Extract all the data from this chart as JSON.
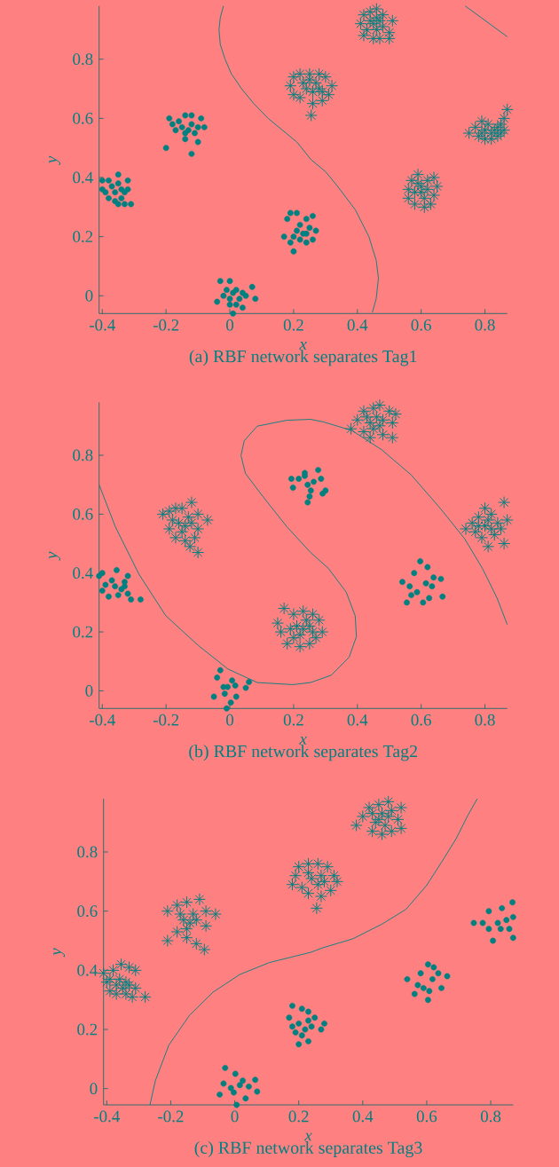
{
  "chart_data": [
    {
      "type": "scatter",
      "title": "(a) RBF network separates Tag1",
      "xlabel": "x",
      "ylabel": "y",
      "xlim": [
        -0.41,
        0.87
      ],
      "ylim": [
        -0.06,
        0.98
      ],
      "xticks": [
        -0.4,
        -0.2,
        0,
        0.2,
        0.4,
        0.6,
        0.8
      ],
      "yticks": [
        0,
        0.2,
        0.4,
        0.6,
        0.8
      ],
      "series": [
        {
          "marker": "circle",
          "color": "#008080",
          "x": [
            -0.4,
            -0.38,
            -0.35,
            -0.32,
            -0.31,
            -0.33,
            -0.35,
            -0.38,
            -0.4,
            -0.36,
            -0.34,
            -0.35,
            -0.33,
            -0.37,
            -0.34,
            -0.36,
            -0.39,
            -0.32,
            -0.2,
            -0.19,
            -0.14,
            -0.12,
            -0.09,
            -0.08,
            -0.12,
            -0.1,
            -0.14,
            -0.17,
            -0.15,
            -0.13,
            -0.11,
            -0.16,
            -0.12,
            -0.14,
            -0.18,
            -0.1,
            0.18,
            0.19,
            0.21,
            0.24,
            0.26,
            0.27,
            0.26,
            0.24,
            0.2,
            0.17,
            0.21,
            0.23,
            0.22,
            0.25,
            0.2,
            0.22,
            0.19,
            0.24,
            -0.03,
            0.0,
            0.07,
            0.08,
            0.04,
            0.01,
            -0.04,
            -0.02,
            0.02,
            0.03,
            0.0,
            0.01,
            0.04,
            -0.01,
            0.02,
            0.05,
            0.0
          ],
          "values": [
            0.39,
            0.39,
            0.41,
            0.39,
            0.31,
            0.31,
            0.31,
            0.33,
            0.36,
            0.35,
            0.36,
            0.38,
            0.35,
            0.37,
            0.33,
            0.32,
            0.35,
            0.36,
            0.5,
            0.6,
            0.61,
            0.61,
            0.6,
            0.57,
            0.48,
            0.52,
            0.53,
            0.56,
            0.57,
            0.56,
            0.55,
            0.59,
            0.58,
            0.55,
            0.58,
            0.57,
            0.26,
            0.28,
            0.28,
            0.26,
            0.27,
            0.22,
            0.19,
            0.18,
            0.15,
            0.2,
            0.22,
            0.21,
            0.19,
            0.23,
            0.2,
            0.24,
            0.18,
            0.21,
            0.05,
            0.05,
            0.03,
            -0.01,
            -0.04,
            -0.06,
            -0.02,
            0.0,
            0.02,
            -0.01,
            -0.01,
            0.01,
            0.01,
            0.02,
            -0.03,
            0.0,
            -0.03
          ]
        },
        {
          "marker": "cross",
          "color": "#008080",
          "x": [
            0.19,
            0.2,
            0.22,
            0.25,
            0.28,
            0.3,
            0.32,
            0.31,
            0.29,
            0.26,
            0.255,
            0.22,
            0.2,
            0.24,
            0.27,
            0.26,
            0.23,
            0.28,
            0.25,
            0.29,
            0.41,
            0.42,
            0.44,
            0.46,
            0.48,
            0.51,
            0.5,
            0.5,
            0.47,
            0.45,
            0.42,
            0.43,
            0.45,
            0.46,
            0.47,
            0.44,
            0.48,
            0.46,
            0.56,
            0.57,
            0.59,
            0.64,
            0.65,
            0.64,
            0.63,
            0.61,
            0.58,
            0.56,
            0.6,
            0.62,
            0.59,
            0.61,
            0.58,
            0.62,
            0.6,
            0.75,
            0.77,
            0.79,
            0.81,
            0.83,
            0.85,
            0.86,
            0.87,
            0.86,
            0.84,
            0.82,
            0.8,
            0.78,
            0.8,
            0.82,
            0.84,
            0.79,
            0.85
          ],
          "values": [
            0.71,
            0.74,
            0.75,
            0.75,
            0.75,
            0.74,
            0.71,
            0.68,
            0.66,
            0.65,
            0.61,
            0.67,
            0.68,
            0.7,
            0.72,
            0.69,
            0.72,
            0.7,
            0.73,
            0.69,
            0.92,
            0.95,
            0.96,
            0.97,
            0.95,
            0.93,
            0.89,
            0.87,
            0.87,
            0.87,
            0.88,
            0.9,
            0.92,
            0.9,
            0.93,
            0.93,
            0.91,
            0.94,
            0.36,
            0.39,
            0.41,
            0.4,
            0.37,
            0.34,
            0.31,
            0.3,
            0.31,
            0.33,
            0.35,
            0.36,
            0.38,
            0.33,
            0.35,
            0.39,
            0.37,
            0.55,
            0.57,
            0.59,
            0.58,
            0.56,
            0.58,
            0.6,
            0.63,
            0.56,
            0.54,
            0.53,
            0.53,
            0.54,
            0.56,
            0.55,
            0.57,
            0.55,
            0.55
          ]
        },
        {
          "type": "line",
          "line_style": "solid",
          "color": "#008080",
          "x": [
            -0.02,
            -0.03,
            -0.034,
            -0.03,
            -0.015,
            0.005,
            0.037,
            0.075,
            0.12,
            0.165,
            0.21,
            0.255,
            0.3,
            0.338,
            0.394,
            0.436,
            0.459,
            0.466,
            0.459,
            0.447
          ],
          "values": [
            0.98,
            0.94,
            0.9,
            0.85,
            0.8,
            0.75,
            0.7,
            0.65,
            0.6,
            0.56,
            0.52,
            0.46,
            0.42,
            0.37,
            0.29,
            0.2,
            0.12,
            0.06,
            -0.01,
            -0.056
          ]
        },
        {
          "type": "line",
          "line_style": "solid",
          "color": "#008080",
          "x": [
            0.738,
            0.87
          ],
          "values": [
            0.98,
            0.876
          ]
        }
      ]
    },
    {
      "type": "scatter",
      "title": "(b) RBF network separates Tag2",
      "xlabel": "x",
      "ylabel": "y",
      "xlim": [
        -0.41,
        0.87
      ],
      "ylim": [
        -0.06,
        0.98
      ],
      "xticks": [
        -0.4,
        -0.2,
        0,
        0.2,
        0.4,
        0.6,
        0.8
      ],
      "yticks": [
        0,
        0.2,
        0.4,
        0.6,
        0.8
      ],
      "series": [
        {
          "marker": "circle",
          "color": "#008080",
          "x": [
            -0.41,
            -0.4,
            -0.355,
            -0.32,
            -0.33,
            -0.32,
            -0.31,
            -0.28,
            -0.38,
            -0.4,
            -0.39,
            -0.36,
            -0.34,
            -0.37,
            -0.35,
            -0.33,
            -0.03,
            -0.04,
            0.007,
            0.06,
            0.05,
            -0.05,
            -0.016,
            0.02,
            0.003,
            -0.01,
            -0.007,
            0.017,
            -0.02,
            0.198,
            0.193,
            0.244,
            0.235,
            0.277,
            0.286,
            0.291,
            0.3,
            0.25,
            0.244,
            0.216,
            0.263,
            0.235,
            0.254,
            0.597,
            0.62,
            0.541,
            0.667,
            0.662,
            0.555,
            0.606,
            0.634,
            0.578,
            0.587,
            0.615,
            0.569,
            0.639,
            0.564,
            0.625
          ],
          "values": [
            0.39,
            0.4,
            0.41,
            0.39,
            0.37,
            0.33,
            0.31,
            0.31,
            0.32,
            0.34,
            0.36,
            0.355,
            0.345,
            0.375,
            0.325,
            0.355,
            0.07,
            0.045,
            0.035,
            0.03,
            0.01,
            -0.02,
            -0.01,
            -0.02,
            -0.04,
            -0.06,
            0.013,
            0.018,
            0.013,
            0.69,
            0.72,
            0.64,
            0.74,
            0.75,
            0.72,
            0.67,
            0.68,
            0.66,
            0.7,
            0.72,
            0.71,
            0.73,
            0.68,
            0.44,
            0.42,
            0.37,
            0.32,
            0.38,
            0.3,
            0.3,
            0.355,
            0.4,
            0.335,
            0.365,
            0.325,
            0.385,
            0.355,
            0.315
          ]
        },
        {
          "marker": "cross",
          "color": "#008080",
          "x": [
            -0.21,
            -0.19,
            -0.17,
            -0.15,
            -0.12,
            -0.1,
            -0.07,
            -0.1,
            -0.11,
            -0.1,
            -0.125,
            -0.14,
            -0.17,
            -0.19,
            -0.16,
            -0.14,
            -0.13,
            -0.15,
            -0.12,
            -0.18,
            0.17,
            0.15,
            0.16,
            0.18,
            0.22,
            0.25,
            0.27,
            0.29,
            0.28,
            0.26,
            0.23,
            0.2,
            0.21,
            0.23,
            0.22,
            0.19,
            0.25,
            0.24,
            0.2,
            0.26,
            0.38,
            0.4,
            0.42,
            0.45,
            0.47,
            0.5,
            0.52,
            0.51,
            0.51,
            0.48,
            0.44,
            0.42,
            0.44,
            0.46,
            0.48,
            0.45,
            0.47,
            0.43,
            0.74,
            0.76,
            0.78,
            0.8,
            0.82,
            0.86,
            0.87,
            0.86,
            0.81,
            0.79,
            0.77,
            0.8,
            0.82,
            0.84,
            0.83,
            0.78,
            0.85,
            0.81
          ],
          "values": [
            0.6,
            0.61,
            0.62,
            0.62,
            0.64,
            0.6,
            0.58,
            0.55,
            0.52,
            0.47,
            0.49,
            0.51,
            0.52,
            0.55,
            0.57,
            0.56,
            0.59,
            0.54,
            0.57,
            0.58,
            0.28,
            0.23,
            0.2,
            0.16,
            0.15,
            0.16,
            0.18,
            0.2,
            0.24,
            0.26,
            0.27,
            0.26,
            0.22,
            0.21,
            0.19,
            0.21,
            0.22,
            0.24,
            0.18,
            0.2,
            0.89,
            0.92,
            0.95,
            0.96,
            0.97,
            0.95,
            0.94,
            0.91,
            0.86,
            0.87,
            0.86,
            0.88,
            0.91,
            0.93,
            0.92,
            0.89,
            0.9,
            0.93,
            0.55,
            0.57,
            0.59,
            0.62,
            0.6,
            0.64,
            0.58,
            0.5,
            0.49,
            0.52,
            0.54,
            0.56,
            0.55,
            0.57,
            0.53,
            0.56,
            0.55,
            0.58
          ]
        },
        {
          "type": "line",
          "line_style": "solid",
          "color": "#008080",
          "x": [
            -0.41,
            -0.359,
            -0.285,
            -0.201,
            -0.099,
            -0.006,
            0.086,
            0.198,
            0.253,
            0.318,
            0.374,
            0.397,
            0.393,
            0.365,
            0.309,
            0.253,
            0.179,
            0.105,
            0.049,
            0.035,
            0.045,
            0.086,
            0.179,
            0.253,
            0.291,
            0.383,
            0.476,
            0.569,
            0.662,
            0.736,
            0.792,
            0.838,
            0.87
          ],
          "values": [
            0.7,
            0.557,
            0.396,
            0.255,
            0.154,
            0.074,
            0.028,
            0.021,
            0.028,
            0.053,
            0.114,
            0.184,
            0.255,
            0.335,
            0.416,
            0.47,
            0.557,
            0.658,
            0.738,
            0.799,
            0.849,
            0.899,
            0.919,
            0.922,
            0.914,
            0.884,
            0.819,
            0.733,
            0.617,
            0.517,
            0.416,
            0.315,
            0.225
          ]
        }
      ]
    },
    {
      "type": "scatter",
      "title": "(c) RBF network separates Tag3",
      "xlabel": "x",
      "ylabel": "y",
      "xlim": [
        -0.41,
        0.87
      ],
      "ylim": [
        -0.055,
        0.98
      ],
      "xticks": [
        -0.4,
        -0.2,
        0,
        0.2,
        0.4,
        0.6,
        0.8
      ],
      "yticks": [
        0,
        0.2,
        0.4,
        0.6,
        0.8
      ],
      "series": [
        {
          "marker": "circle",
          "color": "#008080",
          "x": [
            0.18,
            0.17,
            0.18,
            0.2,
            0.23,
            0.27,
            0.28,
            0.25,
            0.21,
            0.23,
            0.2,
            0.22,
            0.24,
            0.21,
            0.19,
            0.23,
            -0.03,
            -0.047,
            0.006,
            0.07,
            0.064,
            0.002,
            -0.035,
            0.034,
            -0.012,
            0.016,
            0.025,
            -0.003,
            0.044,
            0.604,
            0.622,
            0.664,
            0.539,
            0.562,
            0.604,
            0.646,
            0.581,
            0.618,
            0.59,
            0.572,
            0.636,
            0.608,
            0.868,
            0.747,
            0.807,
            0.87,
            0.87,
            0.835,
            0.794,
            0.775,
            0.822,
            0.849,
            0.831,
            0.794,
            0.858
          ],
          "values": [
            0.28,
            0.24,
            0.21,
            0.15,
            0.16,
            0.2,
            0.22,
            0.24,
            0.27,
            0.26,
            0.22,
            0.2,
            0.21,
            0.18,
            0.19,
            0.23,
            0.07,
            -0.02,
            -0.055,
            -0.01,
            0.03,
            0.05,
            0.017,
            -0.033,
            0.002,
            0.012,
            0.027,
            -0.013,
            0.007,
            0.42,
            0.41,
            0.38,
            0.37,
            0.32,
            0.3,
            0.34,
            0.39,
            0.37,
            0.34,
            0.35,
            0.39,
            0.33,
            0.63,
            0.56,
            0.5,
            0.51,
            0.58,
            0.61,
            0.6,
            0.56,
            0.56,
            0.57,
            0.54,
            0.54,
            0.54
          ]
        },
        {
          "marker": "cross",
          "color": "#008080",
          "x": [
            -0.41,
            -0.4,
            -0.39,
            -0.37,
            -0.34,
            -0.32,
            -0.28,
            -0.31,
            -0.31,
            -0.33,
            -0.355,
            -0.38,
            -0.36,
            -0.34,
            -0.37,
            -0.33,
            -0.35,
            -0.39,
            -0.21,
            -0.21,
            -0.18,
            -0.15,
            -0.11,
            -0.09,
            -0.06,
            -0.09,
            -0.095,
            -0.12,
            -0.15,
            -0.18,
            -0.16,
            -0.14,
            -0.13,
            -0.15,
            -0.12,
            -0.17,
            0.18,
            0.19,
            0.2,
            0.23,
            0.26,
            0.29,
            0.31,
            0.32,
            0.3,
            0.27,
            0.256,
            0.23,
            0.21,
            0.24,
            0.27,
            0.26,
            0.23,
            0.28,
            0.38,
            0.4,
            0.42,
            0.45,
            0.48,
            0.52,
            0.51,
            0.52,
            0.49,
            0.46,
            0.43,
            0.44,
            0.46,
            0.48,
            0.45,
            0.47,
            0.43,
            0.49
          ],
          "values": [
            0.39,
            0.36,
            0.33,
            0.32,
            0.32,
            0.31,
            0.31,
            0.34,
            0.4,
            0.41,
            0.42,
            0.4,
            0.37,
            0.36,
            0.35,
            0.35,
            0.34,
            0.37,
            0.5,
            0.6,
            0.62,
            0.63,
            0.64,
            0.6,
            0.59,
            0.55,
            0.47,
            0.49,
            0.51,
            0.53,
            0.57,
            0.56,
            0.59,
            0.54,
            0.57,
            0.59,
            0.69,
            0.72,
            0.75,
            0.76,
            0.76,
            0.75,
            0.72,
            0.7,
            0.67,
            0.65,
            0.61,
            0.66,
            0.68,
            0.71,
            0.72,
            0.69,
            0.73,
            0.7,
            0.89,
            0.92,
            0.95,
            0.96,
            0.97,
            0.95,
            0.91,
            0.88,
            0.87,
            0.86,
            0.87,
            0.9,
            0.93,
            0.92,
            0.91,
            0.89,
            0.93,
            0.94
          ]
        },
        {
          "type": "line",
          "line_style": "solid",
          "color": "#008080",
          "x": [
            -0.265,
            -0.248,
            -0.206,
            -0.142,
            -0.068,
            0.016,
            0.108,
            0.182,
            0.238,
            0.275,
            0.368,
            0.46,
            0.535,
            0.599,
            0.646,
            0.692,
            0.729,
            0.758
          ],
          "values": [
            -0.055,
            0.027,
            0.147,
            0.247,
            0.326,
            0.386,
            0.426,
            0.446,
            0.461,
            0.476,
            0.506,
            0.556,
            0.606,
            0.686,
            0.765,
            0.845,
            0.925,
            0.98
          ]
        }
      ]
    }
  ]
}
